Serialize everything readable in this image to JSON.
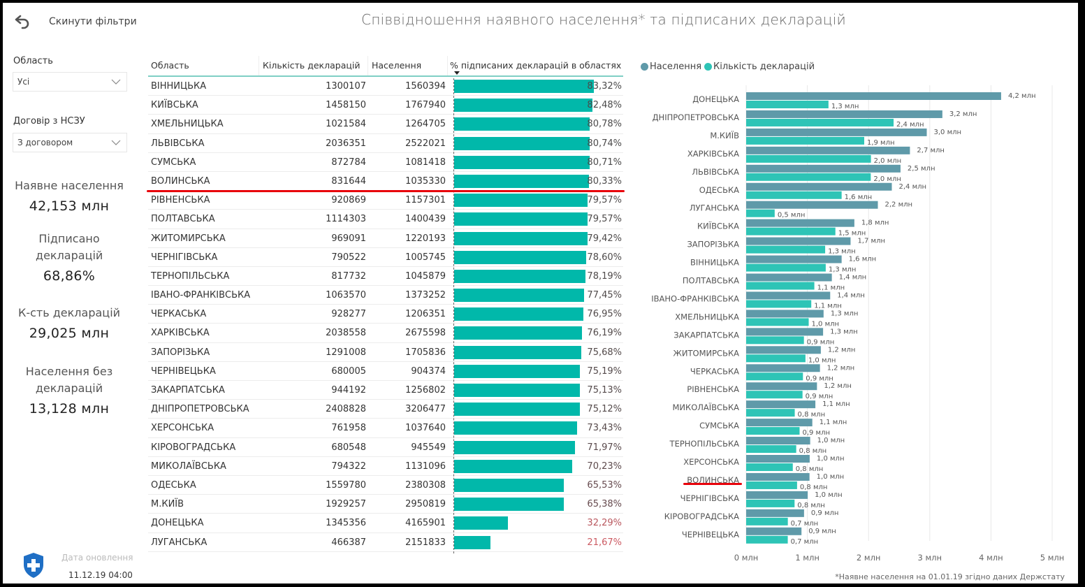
{
  "header": {
    "reset_label": "Скинути фільтри",
    "reset_icon": "undo-arrow-icon",
    "title": "Співвідношення наявного населення* та підписаних декларацій"
  },
  "slicers": [
    {
      "label": "Область",
      "value": "Усі"
    },
    {
      "label": "Договір з НСЗУ",
      "value": "З договором"
    }
  ],
  "cards": [
    {
      "title": "Наявне населення",
      "value": "42,153 млн"
    },
    {
      "title": "Підписано декларацій",
      "value": "68,86%"
    },
    {
      "title": "К-сть декларацій",
      "value": "29,025 млн"
    },
    {
      "title": "Населення без декларацій",
      "value": "13,128 млн"
    }
  ],
  "footer": {
    "logo_icon": "shield-cross-icon",
    "update_label": "Дата оновлення",
    "update_value": "11.12.19 04:00"
  },
  "table": {
    "columns": [
      "Область",
      "Кількість декларацій",
      "Населення",
      "% підписаних декларацій в областях"
    ],
    "sort_column": "% підписаних декларацій в областях",
    "sort_direction": "descending",
    "bar_color": "#01b8aa",
    "highlighted_row": "ВОЛИНСЬКА",
    "rows": [
      {
        "name": "ВІННИЦЬКА",
        "declarations": "1300107",
        "population": "1560394",
        "percent": "83,32%",
        "pct_value": 83.32,
        "pct_color": "#4a4a4a"
      },
      {
        "name": "КИЇВСЬКА",
        "declarations": "1458150",
        "population": "1767940",
        "percent": "82,48%",
        "pct_value": 82.48,
        "pct_color": "#4a4a4a"
      },
      {
        "name": "ХМЕЛЬНИЦЬКА",
        "declarations": "1021584",
        "population": "1264705",
        "percent": "80,78%",
        "pct_value": 80.78,
        "pct_color": "#4b4a4a"
      },
      {
        "name": "ЛЬВІВСЬКА",
        "declarations": "2036351",
        "population": "2522021",
        "percent": "80,74%",
        "pct_value": 80.74,
        "pct_color": "#4b4a4a"
      },
      {
        "name": "СУМСЬКА",
        "declarations": "872784",
        "population": "1081418",
        "percent": "80,71%",
        "pct_value": 80.71,
        "pct_color": "#4b4a4a"
      },
      {
        "name": "ВОЛИНСЬКА",
        "declarations": "831644",
        "population": "1035330",
        "percent": "80,33%",
        "pct_value": 80.33,
        "pct_color": "#4c4a4a"
      },
      {
        "name": "РІВНЕНСЬКА",
        "declarations": "920869",
        "population": "1157301",
        "percent": "79,57%",
        "pct_value": 79.57,
        "pct_color": "#4d4a4a"
      },
      {
        "name": "ПОЛТАВСЬКА",
        "declarations": "1114303",
        "population": "1400439",
        "percent": "79,57%",
        "pct_value": 79.57,
        "pct_color": "#4d4a4a"
      },
      {
        "name": "ЖИТОМИРСЬКА",
        "declarations": "969091",
        "population": "1220193",
        "percent": "79,42%",
        "pct_value": 79.42,
        "pct_color": "#4d4a4a"
      },
      {
        "name": "ЧЕРНІГІВСЬКА",
        "declarations": "790522",
        "population": "1005745",
        "percent": "78,60%",
        "pct_value": 78.6,
        "pct_color": "#4e4a4a"
      },
      {
        "name": "ТЕРНОПІЛЬСЬКА",
        "declarations": "817732",
        "population": "1045879",
        "percent": "78,19%",
        "pct_value": 78.19,
        "pct_color": "#4f4a4a"
      },
      {
        "name": "ІВАНО-ФРАНКІВСЬКА",
        "declarations": "1063570",
        "population": "1373252",
        "percent": "77,45%",
        "pct_value": 77.45,
        "pct_color": "#504a4a"
      },
      {
        "name": "ЧЕРКАСЬКА",
        "declarations": "928277",
        "population": "1206351",
        "percent": "76,95%",
        "pct_value": 76.95,
        "pct_color": "#514a4a"
      },
      {
        "name": "ХАРКІВСЬКА",
        "declarations": "2038558",
        "population": "2675598",
        "percent": "76,19%",
        "pct_value": 76.19,
        "pct_color": "#524a4a"
      },
      {
        "name": "ЗАПОРІЗЬКА",
        "declarations": "1291008",
        "population": "1705836",
        "percent": "75,68%",
        "pct_value": 75.68,
        "pct_color": "#534a4a"
      },
      {
        "name": "ЧЕРНІВЕЦЬКА",
        "declarations": "680005",
        "population": "904374",
        "percent": "75,19%",
        "pct_value": 75.19,
        "pct_color": "#544a4b"
      },
      {
        "name": "ЗАКАРПАТСЬКА",
        "declarations": "944192",
        "population": "1256802",
        "percent": "75,13%",
        "pct_value": 75.13,
        "pct_color": "#544a4b"
      },
      {
        "name": "ДНІПРОПЕТРОВСЬКА",
        "declarations": "2408828",
        "population": "3206477",
        "percent": "75,12%",
        "pct_value": 75.12,
        "pct_color": "#544a4b"
      },
      {
        "name": "ХЕРСОНСЬКА",
        "declarations": "761958",
        "population": "1037640",
        "percent": "73,43%",
        "pct_value": 73.43,
        "pct_color": "#574a4b"
      },
      {
        "name": "КІРОВОГРАДСЬКА",
        "declarations": "680548",
        "population": "945549",
        "percent": "71,97%",
        "pct_value": 71.97,
        "pct_color": "#5a4a4c"
      },
      {
        "name": "МИКОЛАЇВСЬКА",
        "declarations": "794322",
        "population": "1131096",
        "percent": "70,23%",
        "pct_value": 70.23,
        "pct_color": "#5d4a4c"
      },
      {
        "name": "ОДЕСЬКА",
        "declarations": "1559780",
        "population": "2380308",
        "percent": "65,53%",
        "pct_value": 65.53,
        "pct_color": "#664a4e"
      },
      {
        "name": "М.КИЇВ",
        "declarations": "1929257",
        "population": "2950819",
        "percent": "65,38%",
        "pct_value": 65.38,
        "pct_color": "#664a4e"
      },
      {
        "name": "ДОНЕЦЬКА",
        "declarations": "1345356",
        "population": "4165901",
        "percent": "32,29%",
        "pct_value": 32.29,
        "pct_color": "#b9575e"
      },
      {
        "name": "ЛУГАНСЬКА",
        "declarations": "466387",
        "population": "2151833",
        "percent": "21,67%",
        "pct_value": 21.67,
        "pct_color": "#cc5a62"
      }
    ]
  },
  "chart_data": {
    "type": "bar",
    "orientation": "horizontal",
    "title": "",
    "xlabel": "",
    "ylabel": "",
    "xlim": [
      0,
      5
    ],
    "x_unit": "млн",
    "x_ticks": [
      "0 млн",
      "1 млн",
      "2 млн",
      "3 млн",
      "4 млн",
      "5 млн"
    ],
    "grid": true,
    "legend_position": "top-left",
    "highlighted_category": "ВОЛИНСЬКА",
    "categories": [
      "ДОНЕЦЬКА",
      "ДНІПРОПЕТРОВСЬКА",
      "М.КИЇВ",
      "ХАРКІВСЬКА",
      "ЛЬВІВСЬКА",
      "ОДЕСЬКА",
      "ЛУГАНСЬКА",
      "КИЇВСЬКА",
      "ЗАПОРІЗЬКА",
      "ВІННИЦЬКА",
      "ПОЛТАВСЬКА",
      "ІВАНО-ФРАНКІВСЬКА",
      "ХМЕЛЬНИЦЬКА",
      "ЗАКАРПАТСЬКА",
      "ЖИТОМИРСЬКА",
      "ЧЕРКАСЬКА",
      "РІВНЕНСЬКА",
      "МИКОЛАЇВСЬКА",
      "СУМСЬКА",
      "ТЕРНОПІЛЬСЬКА",
      "ХЕРСОНСЬКА",
      "ВОЛИНСЬКА",
      "ЧЕРНІГІВСЬКА",
      "КІРОВОГРАДСЬКА",
      "ЧЕРНІВЕЦЬКА"
    ],
    "series": [
      {
        "name": "Населення",
        "color": "#5f9aa9",
        "values": [
          4.166,
          3.206,
          2.951,
          2.676,
          2.522,
          2.38,
          2.152,
          1.768,
          1.706,
          1.56,
          1.4,
          1.373,
          1.265,
          1.257,
          1.22,
          1.206,
          1.157,
          1.131,
          1.081,
          1.046,
          1.038,
          1.035,
          1.006,
          0.946,
          0.904
        ],
        "labels": [
          "4,2 млн",
          "3,2 млн",
          "3,0 млн",
          "2,7 млн",
          "2,5 млн",
          "2,4 млн",
          "2,2 млн",
          "1,8 млн",
          "1,7 млн",
          "1,6 млн",
          "1,4 млн",
          "1,4 млн",
          "1,3 млн",
          "1,3 млн",
          "1,2 млн",
          "1,2 млн",
          "1,2 млн",
          "1,1 млн",
          "1,1 млн",
          "1,0 млн",
          "1,0 млн",
          "1,0 млн",
          "1,0 млн",
          "0,9 млн",
          "0,9 млн"
        ]
      },
      {
        "name": "Кількість декларацій",
        "color": "#2ec4b6",
        "values": [
          1.345,
          2.409,
          1.929,
          2.039,
          2.036,
          1.56,
          0.466,
          1.458,
          1.291,
          1.3,
          1.114,
          1.064,
          1.022,
          0.944,
          0.969,
          0.928,
          0.921,
          0.794,
          0.873,
          0.818,
          0.762,
          0.832,
          0.791,
          0.681,
          0.68
        ],
        "labels": [
          "1,3 млн",
          "2,4 млн",
          "1,9 млн",
          "2,0 млн",
          "2,0 млн",
          "1,6 млн",
          "0,5 млн",
          "1,5 млн",
          "1,3 млн",
          "1,3 млн",
          "1,1 млн",
          "1,1 млн",
          "1,0 млн",
          "0,9 млн",
          "1,0 млн",
          "0,9 млн",
          "0,9 млн",
          "0,8 млн",
          "0,9 млн",
          "0,8 млн",
          "0,8 млн",
          "0,8 млн",
          "0,8 млн",
          "0,7 млн",
          "0,7 млн"
        ]
      }
    ]
  },
  "footnote": "*Наявне населення на 01.01.19 згідно даних Держстату"
}
